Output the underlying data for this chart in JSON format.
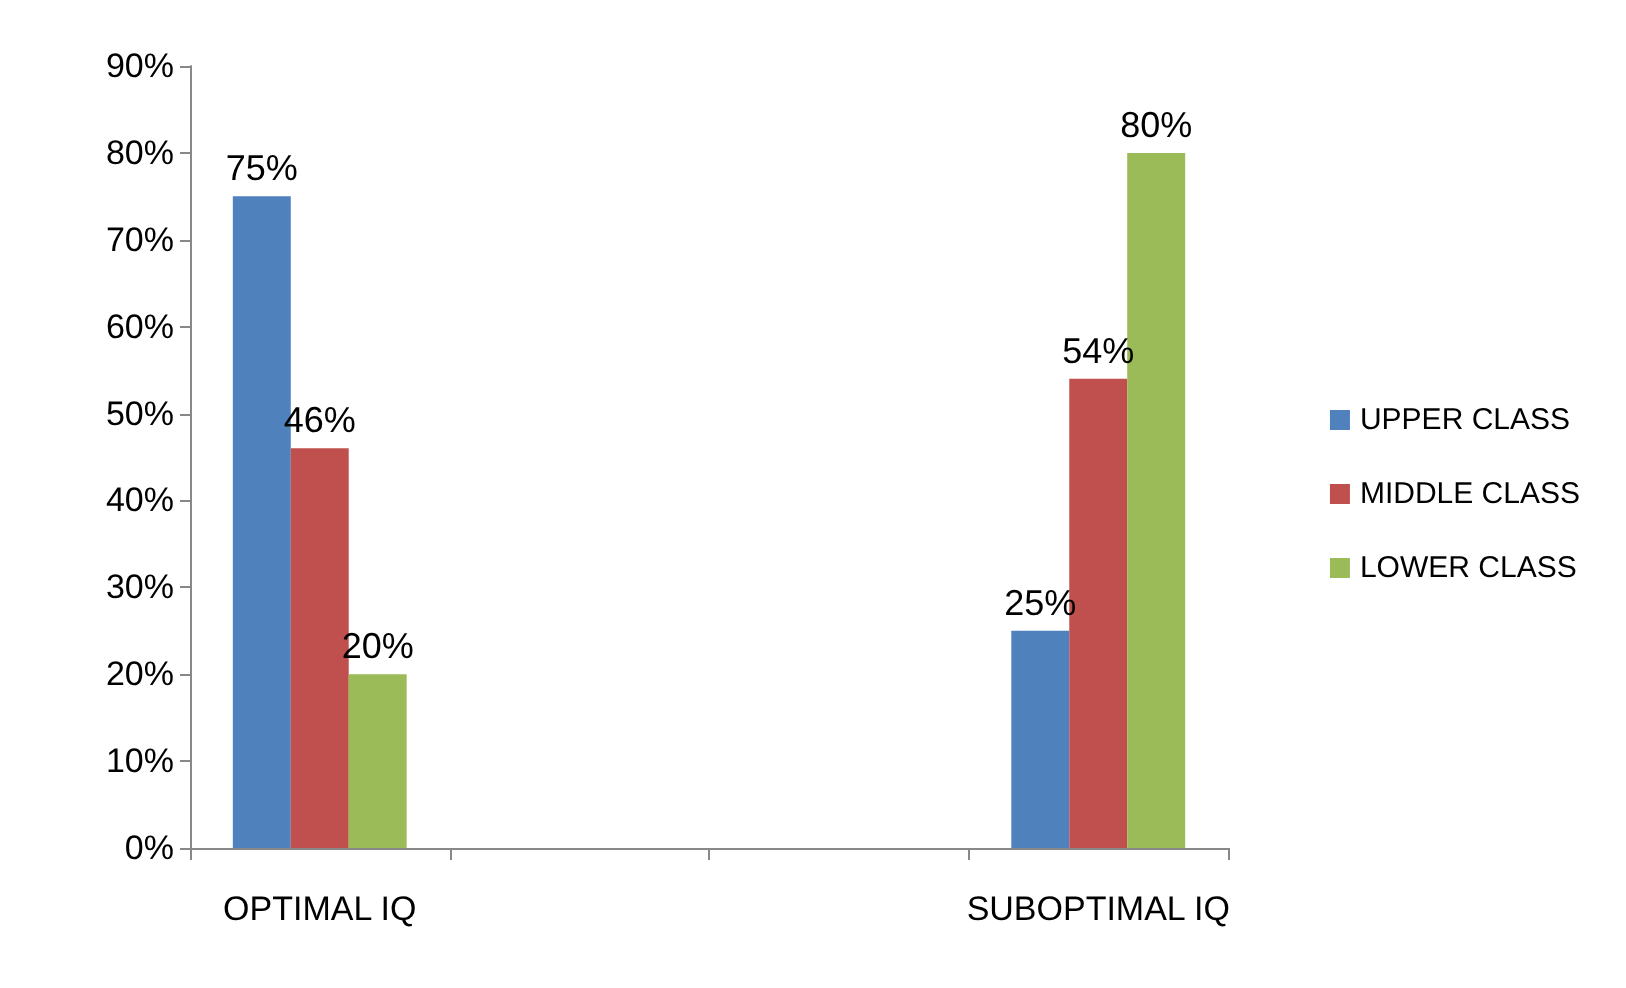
{
  "chart_data": {
    "type": "bar",
    "categories": [
      "OPTIMAL IQ",
      null,
      null,
      "SUBOPTIMAL IQ"
    ],
    "series": [
      {
        "name": "UPPER CLASS",
        "color": "#4f81bd",
        "values": [
          75,
          null,
          null,
          25
        ],
        "value_labels": [
          "75%",
          null,
          null,
          "25%"
        ]
      },
      {
        "name": "MIDDLE CLASS",
        "color": "#c0504d",
        "values": [
          46,
          null,
          null,
          54
        ],
        "value_labels": [
          "46%",
          null,
          null,
          "54%"
        ]
      },
      {
        "name": "LOWER CLASS",
        "color": "#9bbb59",
        "values": [
          20,
          null,
          null,
          80
        ],
        "value_labels": [
          "20%",
          null,
          null,
          "80%"
        ]
      }
    ],
    "ylim": [
      0,
      90
    ],
    "yticks": [
      {
        "value": 0,
        "label": "0%"
      },
      {
        "value": 10,
        "label": "10%"
      },
      {
        "value": 20,
        "label": "20%"
      },
      {
        "value": 30,
        "label": "30%"
      },
      {
        "value": 40,
        "label": "40%"
      },
      {
        "value": 50,
        "label": "50%"
      },
      {
        "value": 60,
        "label": "60%"
      },
      {
        "value": 70,
        "label": "70%"
      },
      {
        "value": 80,
        "label": "80%"
      },
      {
        "value": 90,
        "label": "90%"
      }
    ],
    "grid": false,
    "legend": "right"
  }
}
